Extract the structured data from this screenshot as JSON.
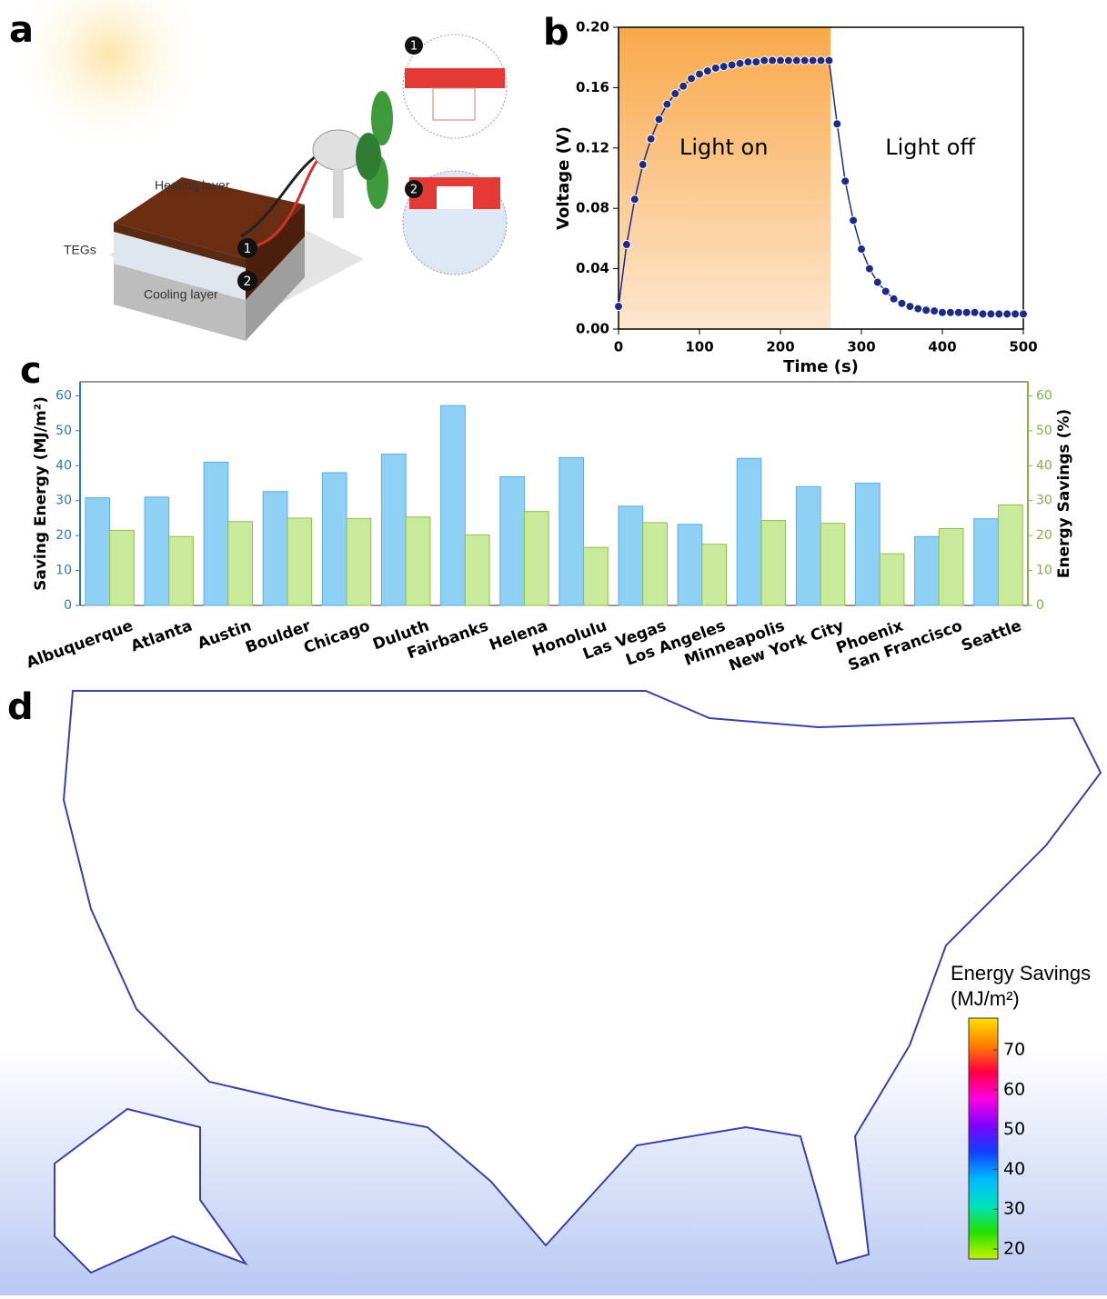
{
  "panels": [
    "a",
    "b",
    "c",
    "d"
  ],
  "diagram": {
    "heating": "Heating layer",
    "tegs": "TEGs",
    "cooling": "Cooling layer",
    "badge_1": "1",
    "badge_2": "2"
  },
  "chart_data": [
    {
      "type": "scatter",
      "xlabel": "Time (s)",
      "ylabel": "Voltage (V)",
      "annotations": [
        "Light on",
        "Light off"
      ],
      "light_on_range": [
        0,
        262
      ],
      "color": "#1c2a8a",
      "xlim": [
        0,
        500
      ],
      "xticks": [
        0,
        100,
        200,
        300,
        400,
        500
      ],
      "ylim": [
        0,
        0.2
      ],
      "yticks": [
        {
          "value": 0,
          "label": "0.00"
        },
        {
          "value": 0.04,
          "label": "0.04"
        },
        {
          "value": 0.08,
          "label": "0.08"
        },
        {
          "value": 0.12,
          "label": "0.12"
        },
        {
          "value": 0.16,
          "label": "0.16"
        },
        {
          "value": 0.2,
          "label": "0.20"
        }
      ],
      "x": [
        0,
        10,
        20,
        30,
        40,
        50,
        60,
        70,
        80,
        90,
        100,
        110,
        120,
        130,
        140,
        150,
        160,
        170,
        180,
        190,
        200,
        210,
        220,
        230,
        240,
        250,
        260,
        270,
        280,
        290,
        300,
        310,
        320,
        330,
        340,
        350,
        360,
        370,
        380,
        390,
        400,
        410,
        420,
        430,
        440,
        450,
        460,
        470,
        480,
        490,
        500
      ],
      "values": [
        0.015,
        0.056,
        0.086,
        0.109,
        0.126,
        0.139,
        0.149,
        0.156,
        0.161,
        0.166,
        0.169,
        0.171,
        0.173,
        0.174,
        0.175,
        0.176,
        0.177,
        0.177,
        0.178,
        0.178,
        0.178,
        0.178,
        0.178,
        0.178,
        0.178,
        0.178,
        0.178,
        0.136,
        0.098,
        0.072,
        0.053,
        0.04,
        0.031,
        0.025,
        0.02,
        0.017,
        0.015,
        0.0135,
        0.0125,
        0.012,
        0.011,
        0.011,
        0.011,
        0.011,
        0.011,
        0.01,
        0.01,
        0.01,
        0.01,
        0.01,
        0.01
      ]
    },
    {
      "type": "bar",
      "ylabel": "Saving Energy (MJ/m²)",
      "y2label": "Energy Savings (%)",
      "categories": [
        "Albuquerque",
        "Atlanta",
        "Austin",
        "Boulder",
        "Chicago",
        "Duluth",
        "Fairbanks",
        "Helena",
        "Honolulu",
        "Las Vegas",
        "Los Angeles",
        "Minneapolis",
        "New York City",
        "Phoenix",
        "San Francisco",
        "Seattle"
      ],
      "series": [
        {
          "color": "#8fd0f5",
          "values": [
            30.8,
            31,
            41,
            32.6,
            38,
            43.3,
            57.2,
            36.8,
            42.3,
            28.4,
            23.2,
            42.1,
            34,
            35,
            19.7,
            24.8
          ]
        },
        {
          "color": "#c9e99b",
          "axis": "y2",
          "values": [
            21.5,
            19.7,
            24,
            25,
            24.9,
            25.3,
            20.2,
            26.9,
            16.6,
            23.7,
            17.5,
            24.3,
            23.5,
            14.8,
            22,
            28.8
          ]
        }
      ],
      "ylim": [
        0,
        64
      ],
      "yticks": [
        0,
        10,
        20,
        30,
        40,
        50,
        60
      ],
      "y2lim": [
        0,
        64
      ],
      "y2ticks": [
        0,
        10,
        20,
        30,
        40,
        50,
        60
      ]
    },
    {
      "type": "colorbar",
      "title": "Energy Savings",
      "subtitle": "(MJ/m²)",
      "colors": [
        "#c8f000",
        "#22e000",
        "#00e0c0",
        "#00b8ff",
        "#1040ff",
        "#8000ff",
        "#ff00e0",
        "#ff0040",
        "#ff8000",
        "#ffe000"
      ],
      "ylim": [
        17.5,
        78
      ],
      "yticks": [
        20,
        30,
        40,
        50,
        60,
        70
      ]
    }
  ]
}
